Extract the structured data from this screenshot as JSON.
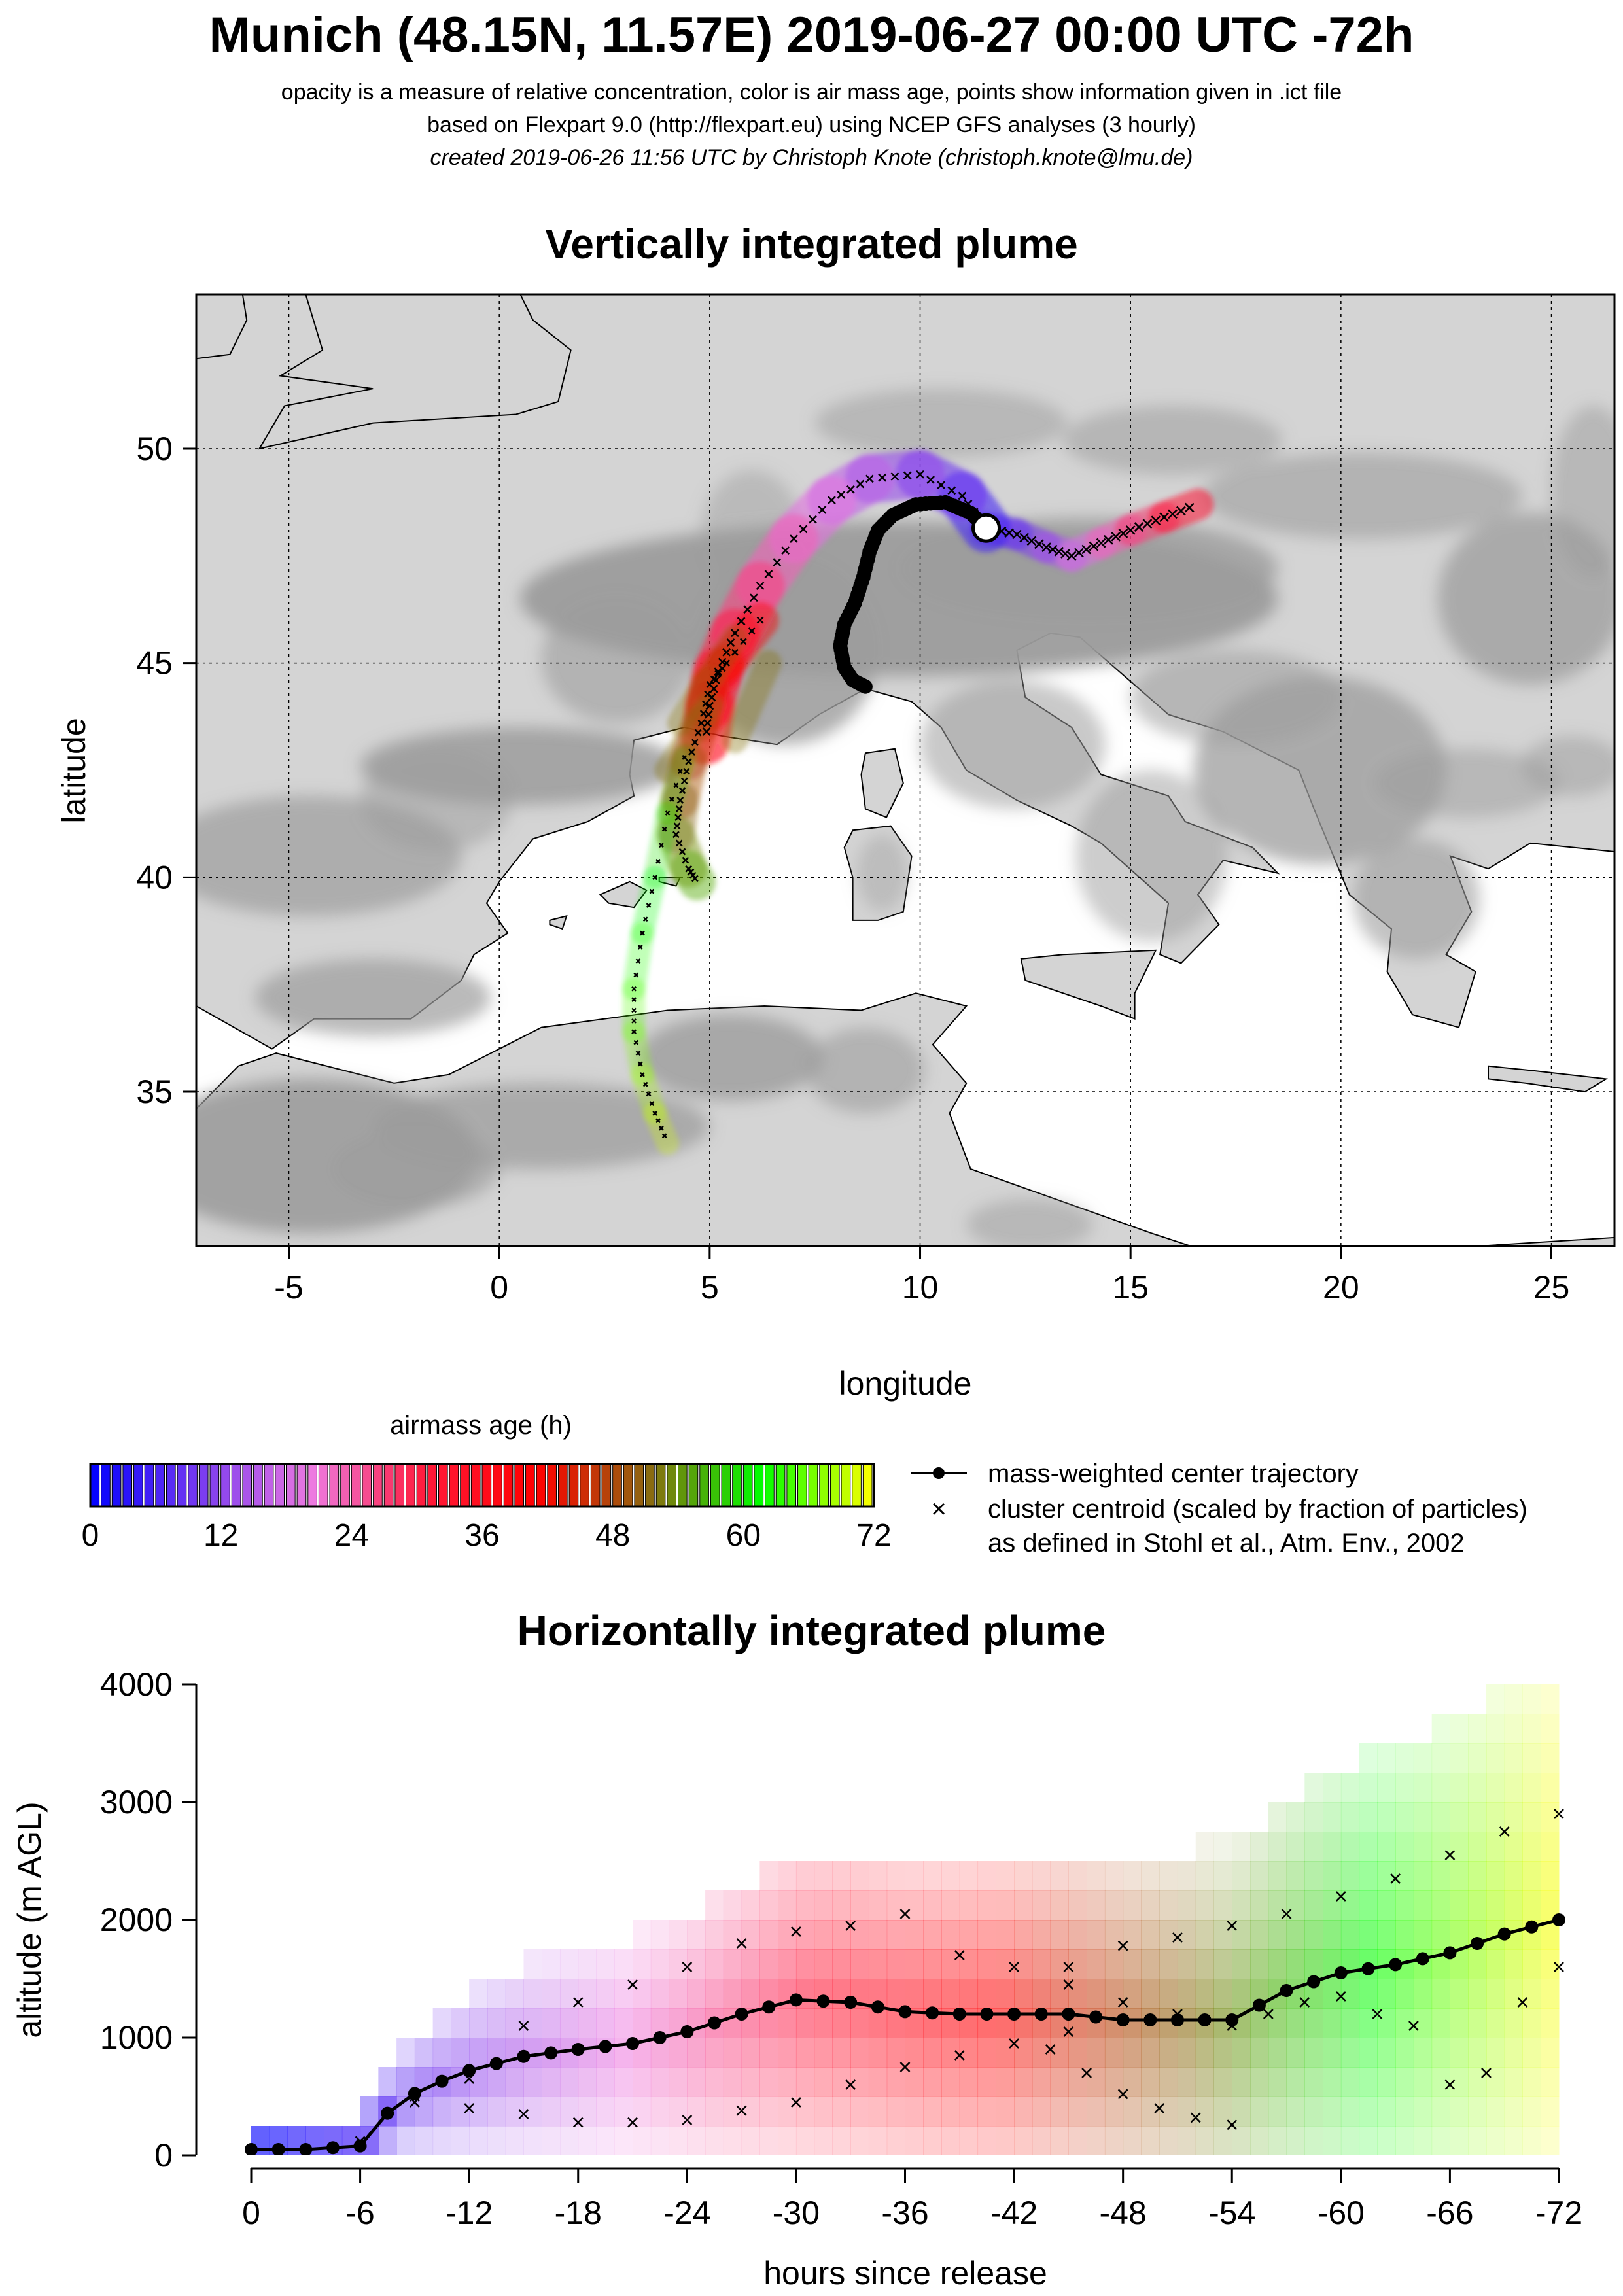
{
  "header": {
    "title": "Munich (48.15N, 11.57E) 2019-06-27 00:00 UTC -72h",
    "subtitle_1": "opacity is a measure of relative concentration, color is air mass age, points show information given in .ict file",
    "subtitle_2": "based on Flexpart 9.0 (http://flexpart.eu) using NCEP GFS analyses (3 hourly)",
    "subtitle_3": "created 2019-06-26 11:56 UTC by Christoph Knote (christoph.knote@lmu.de)"
  },
  "colors": {
    "land": "#d4d4d4",
    "terrain_dark": "#9c9c9c",
    "sea": "#ffffff",
    "age_ramp": [
      "#0000ff",
      "#7a3cf0",
      "#ee7ae0",
      "#ff1a3a",
      "#ff0000",
      "#8b6a10",
      "#00ff00",
      "#ffff00"
    ]
  },
  "chart_data": [
    {
      "type": "map",
      "title": "Vertically integrated plume",
      "xlabel": "longitude",
      "ylabel": "latitude",
      "xlim": [
        -7.2,
        26.5
      ],
      "ylim": [
        31.4,
        53.6
      ],
      "xticks": [
        -5,
        0,
        5,
        10,
        15,
        20,
        25
      ],
      "yticks": [
        35,
        40,
        45,
        50
      ],
      "grid": true,
      "release_site": {
        "lon": 11.57,
        "lat": 48.15
      },
      "center_trajectory": [
        [
          11.57,
          48.15
        ],
        [
          11.2,
          48.5
        ],
        [
          10.6,
          48.75
        ],
        [
          9.9,
          48.7
        ],
        [
          9.35,
          48.45
        ],
        [
          9.0,
          48.1
        ],
        [
          8.8,
          47.6
        ],
        [
          8.65,
          47.0
        ],
        [
          8.45,
          46.4
        ],
        [
          8.2,
          45.9
        ],
        [
          8.1,
          45.4
        ],
        [
          8.2,
          44.9
        ],
        [
          8.4,
          44.6
        ],
        [
          8.7,
          44.45
        ]
      ],
      "cluster_tracks": [
        [
          [
            11.57,
            48.15
          ],
          [
            12.3,
            48.0
          ],
          [
            13.0,
            47.7
          ],
          [
            13.6,
            47.5
          ],
          [
            14.3,
            47.8
          ],
          [
            15.0,
            48.1
          ],
          [
            15.8,
            48.4
          ],
          [
            16.6,
            48.7
          ]
        ],
        [
          [
            11.57,
            48.15
          ],
          [
            11.0,
            48.9
          ],
          [
            10.0,
            49.4
          ],
          [
            8.8,
            49.3
          ],
          [
            7.9,
            48.8
          ],
          [
            7.0,
            47.9
          ],
          [
            6.2,
            46.8
          ],
          [
            5.6,
            45.7
          ],
          [
            5.2,
            44.8
          ],
          [
            5.0,
            44.0
          ],
          [
            4.9,
            43.2
          ]
        ],
        [
          [
            6.2,
            46.0
          ],
          [
            5.4,
            45.0
          ],
          [
            5.0,
            44.5
          ],
          [
            4.8,
            43.6
          ],
          [
            4.5,
            42.7
          ],
          [
            4.3,
            41.8
          ],
          [
            4.2,
            41.0
          ],
          [
            4.5,
            40.2
          ],
          [
            4.7,
            39.9
          ]
        ],
        [
          [
            4.4,
            42.8
          ],
          [
            4.0,
            41.5
          ],
          [
            3.7,
            40.0
          ],
          [
            3.4,
            38.7
          ],
          [
            3.2,
            37.4
          ],
          [
            3.2,
            36.4
          ],
          [
            3.4,
            35.4
          ],
          [
            3.7,
            34.5
          ],
          [
            4.0,
            33.8
          ]
        ]
      ],
      "colorbar": {
        "label": "airmass age (h)",
        "ticks": [
          0,
          12,
          24,
          36,
          48,
          60,
          72
        ]
      },
      "legend": {
        "line": "mass-weighted center trajectory",
        "cross": "cluster centroid (scaled by fraction of particles)",
        "note": "as defined in Stohl et al., Atm. Env., 2002"
      }
    },
    {
      "type": "heatmap",
      "title": "Horizontally integrated plume",
      "xlabel": "hours since release",
      "ylabel": "altitude (m AGL)",
      "xlim": [
        0,
        -72
      ],
      "ylim": [
        0,
        4000
      ],
      "xticks": [
        0,
        -6,
        -12,
        -18,
        -24,
        -30,
        -36,
        -42,
        -48,
        -54,
        -60,
        -66,
        -72
      ],
      "yticks": [
        0,
        1000,
        2000,
        3000,
        4000
      ],
      "center_altitude": {
        "hours": [
          0,
          -3,
          -6,
          -8,
          -10,
          -12,
          -15,
          -18,
          -21,
          -24,
          -27,
          -30,
          -33,
          -36,
          -39,
          -42,
          -45,
          -48,
          -51,
          -54,
          -57,
          -60,
          -63,
          -66,
          -69,
          -72
        ],
        "altitude_m": [
          50,
          50,
          80,
          450,
          600,
          720,
          840,
          900,
          950,
          1050,
          1200,
          1320,
          1300,
          1220,
          1200,
          1200,
          1200,
          1150,
          1150,
          1150,
          1400,
          1550,
          1620,
          1720,
          1880,
          2000
        ]
      },
      "cluster_altitudes": [
        {
          "hours": [
            0,
            -6,
            -9,
            -12,
            -15,
            -18,
            -21,
            -24,
            -27,
            -30,
            -33,
            -36,
            -39,
            -42,
            -45,
            -48,
            -51,
            -54
          ],
          "altitude_m": [
            50,
            120,
            500,
            650,
            1100,
            1300,
            1450,
            1600,
            1800,
            1900,
            1950,
            2050,
            1700,
            1600,
            1450,
            1300,
            1200,
            1100
          ]
        },
        {
          "hours": [
            -45,
            -48,
            -51,
            -54,
            -57,
            -60,
            -63,
            -66,
            -69,
            -72
          ],
          "altitude_m": [
            1600,
            1780,
            1850,
            1950,
            2050,
            2200,
            2350,
            2550,
            2750,
            2900
          ]
        },
        {
          "hours": [
            -9,
            -12,
            -15,
            -18,
            -21,
            -24,
            -27,
            -30,
            -33,
            -36,
            -39,
            -42,
            -45
          ],
          "altitude_m": [
            450,
            400,
            350,
            280,
            280,
            300,
            380,
            450,
            600,
            750,
            850,
            950,
            1050
          ]
        },
        {
          "hours": [
            -44,
            -46,
            -48,
            -50,
            -52,
            -54,
            -56,
            -58,
            -60,
            -62,
            -64,
            -66,
            -68,
            -70,
            -72
          ],
          "altitude_m": [
            900,
            700,
            520,
            400,
            320,
            260,
            1200,
            1300,
            1350,
            1200,
            1100,
            600,
            700,
            1300,
            1600
          ]
        }
      ]
    }
  ]
}
